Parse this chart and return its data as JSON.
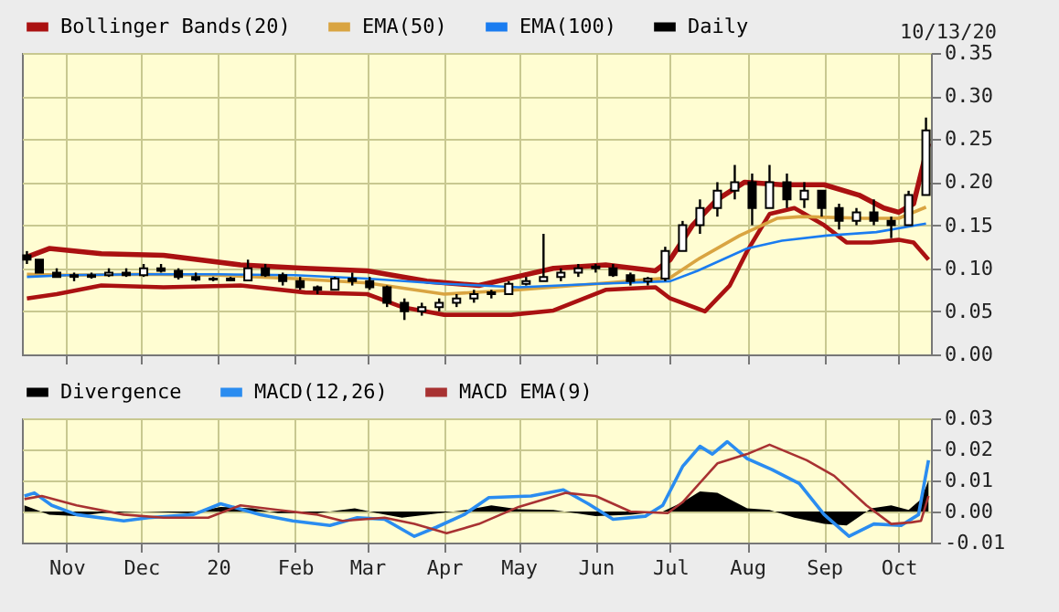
{
  "chart_data": [
    {
      "type": "candlestick",
      "legend": "top",
      "grid": true,
      "tick_labels": "y",
      "annotations": [
        "10/13/20"
      ],
      "xlim": [
        "2019-10-14",
        "2020-10-14"
      ],
      "xticks": [
        {
          "value": "2019-11-01",
          "label": null
        },
        {
          "value": "2019-12-01",
          "label": null
        },
        {
          "value": "2020-01-01",
          "label": null
        },
        {
          "value": "2020-02-01",
          "label": null
        },
        {
          "value": "2020-03-01",
          "label": null
        },
        {
          "value": "2020-04-01",
          "label": null
        },
        {
          "value": "2020-05-01",
          "label": null
        },
        {
          "value": "2020-06-01",
          "label": null
        },
        {
          "value": "2020-07-01",
          "label": null
        },
        {
          "value": "2020-08-01",
          "label": null
        },
        {
          "value": "2020-09-01",
          "label": null
        },
        {
          "value": "2020-10-01",
          "label": null
        }
      ],
      "ylim": [
        0,
        0.35
      ],
      "yticks": [
        {
          "value": 0,
          "label": "0.00"
        },
        0.05,
        {
          "value": 0.1,
          "label": "0.10"
        },
        0.15,
        {
          "value": 0.2,
          "label": "0.20"
        },
        0.25,
        {
          "value": 0.3,
          "label": "0.30"
        },
        0.35
      ],
      "series": [
        {
          "name": "Bollinger Bands(20)",
          "type": "line",
          "color": "#aa1111",
          "x": [
            "2019-10-16",
            "2019-10-25",
            "2019-11-15",
            "2019-12-10",
            "2020-01-10",
            "2020-02-05",
            "2020-03-01",
            "2020-03-25",
            "2020-04-15",
            "2020-04-30",
            "2020-05-15",
            "2020-06-05",
            "2020-06-25",
            "2020-07-01",
            "2020-07-10",
            "2020-07-20",
            "2020-07-31",
            "2020-08-15",
            "2020-09-01",
            "2020-09-15",
            "2020-09-25",
            "2020-10-01",
            "2020-10-07",
            "2020-10-13"
          ],
          "values": [
            0.113,
            0.123,
            0.117,
            0.115,
            0.104,
            0.1,
            0.097,
            0.085,
            0.08,
            0.09,
            0.1,
            0.104,
            0.097,
            0.11,
            0.15,
            0.18,
            0.2,
            0.197,
            0.197,
            0.185,
            0.17,
            0.165,
            0.175,
            0.245
          ]
        },
        {
          "type": "line",
          "color": "#aa1111",
          "x": [
            "2019-10-16",
            "2019-10-28",
            "2019-11-15",
            "2019-12-10",
            "2020-01-10",
            "2020-02-05",
            "2020-03-01",
            "2020-03-15",
            "2020-04-01",
            "2020-04-28",
            "2020-05-15",
            "2020-06-05",
            "2020-06-25",
            "2020-07-01",
            "2020-07-15",
            "2020-07-25",
            "2020-08-01",
            "2020-08-10",
            "2020-08-20",
            "2020-09-01",
            "2020-09-10",
            "2020-09-20",
            "2020-10-01",
            "2020-10-07",
            "2020-10-13"
          ],
          "values": [
            0.065,
            0.07,
            0.08,
            0.078,
            0.08,
            0.072,
            0.07,
            0.055,
            0.046,
            0.046,
            0.051,
            0.075,
            0.078,
            0.065,
            0.05,
            0.08,
            0.12,
            0.163,
            0.17,
            0.15,
            0.13,
            0.13,
            0.133,
            0.13,
            0.11
          ]
        },
        {
          "name": "EMA(50)",
          "type": "line",
          "color": "#d9a441",
          "x": [
            "2019-10-16",
            "2019-11-01",
            "2019-12-01",
            "2020-01-01",
            "2020-02-01",
            "2020-03-01",
            "2020-04-01",
            "2020-05-01",
            "2020-06-01",
            "2020-07-01",
            "2020-07-12",
            "2020-07-29",
            "2020-08-13",
            "2020-08-23",
            "2020-09-17",
            "2020-10-01",
            "2020-10-12"
          ],
          "values": [
            0.093,
            0.092,
            0.093,
            0.092,
            0.088,
            0.083,
            0.07,
            0.075,
            0.082,
            0.089,
            0.11,
            0.138,
            0.158,
            0.16,
            0.158,
            0.158,
            0.171
          ]
        },
        {
          "name": "EMA(100)",
          "type": "line",
          "color": "#1a7cf0",
          "x": [
            "2019-10-16",
            "2019-11-01",
            "2019-12-01",
            "2020-01-01",
            "2020-02-01",
            "2020-03-01",
            "2020-04-01",
            "2020-05-01",
            "2020-06-01",
            "2020-07-01",
            "2020-07-12",
            "2020-08-01",
            "2020-08-15",
            "2020-09-02",
            "2020-09-22",
            "2020-10-12"
          ],
          "values": [
            0.09,
            0.092,
            0.093,
            0.093,
            0.092,
            0.088,
            0.082,
            0.078,
            0.082,
            0.085,
            0.097,
            0.123,
            0.132,
            0.138,
            0.142,
            0.152
          ]
        },
        {
          "name": "Daily",
          "color": "#000000",
          "x": [
            "2019-10-16",
            "2019-10-21",
            "2019-10-28",
            "2019-11-04",
            "2019-11-11",
            "2019-11-18",
            "2019-11-25",
            "2019-12-02",
            "2019-12-09",
            "2019-12-16",
            "2019-12-23",
            "2019-12-30",
            "2020-01-06",
            "2020-01-13",
            "2020-01-20",
            "2020-01-27",
            "2020-02-03",
            "2020-02-10",
            "2020-02-17",
            "2020-02-24",
            "2020-03-02",
            "2020-03-09",
            "2020-03-16",
            "2020-03-23",
            "2020-03-30",
            "2020-04-06",
            "2020-04-13",
            "2020-04-20",
            "2020-04-27",
            "2020-05-04",
            "2020-05-11",
            "2020-05-18",
            "2020-05-25",
            "2020-06-01",
            "2020-06-08",
            "2020-06-15",
            "2020-06-22",
            "2020-06-29",
            "2020-07-06",
            "2020-07-13",
            "2020-07-20",
            "2020-07-27",
            "2020-08-03",
            "2020-08-10",
            "2020-08-17",
            "2020-08-24",
            "2020-08-31",
            "2020-09-07",
            "2020-09-14",
            "2020-09-21",
            "2020-09-28",
            "2020-10-05",
            "2020-10-12"
          ],
          "ohlc": [
            [
              0.115,
              0.12,
              0.105,
              0.11
            ],
            [
              0.11,
              0.11,
              0.095,
              0.095
            ],
            [
              0.095,
              0.1,
              0.09,
              0.09
            ],
            [
              0.09,
              0.095,
              0.085,
              0.092
            ],
            [
              0.09,
              0.095,
              0.088,
              0.092
            ],
            [
              0.092,
              0.1,
              0.09,
              0.095
            ],
            [
              0.095,
              0.1,
              0.09,
              0.092
            ],
            [
              0.092,
              0.105,
              0.09,
              0.1
            ],
            [
              0.1,
              0.105,
              0.095,
              0.097
            ],
            [
              0.097,
              0.1,
              0.087,
              0.09
            ],
            [
              0.09,
              0.095,
              0.085,
              0.087
            ],
            [
              0.087,
              0.09,
              0.085,
              0.088
            ],
            [
              0.088,
              0.09,
              0.085,
              0.086
            ],
            [
              0.086,
              0.11,
              0.085,
              0.1
            ],
            [
              0.1,
              0.105,
              0.09,
              0.092
            ],
            [
              0.092,
              0.095,
              0.08,
              0.085
            ],
            [
              0.085,
              0.09,
              0.075,
              0.078
            ],
            [
              0.078,
              0.08,
              0.07,
              0.075
            ],
            [
              0.075,
              0.09,
              0.075,
              0.088
            ],
            [
              0.088,
              0.095,
              0.08,
              0.085
            ],
            [
              0.085,
              0.09,
              0.075,
              0.078
            ],
            [
              0.078,
              0.08,
              0.055,
              0.06
            ],
            [
              0.06,
              0.065,
              0.04,
              0.05
            ],
            [
              0.05,
              0.06,
              0.045,
              0.055
            ],
            [
              0.055,
              0.065,
              0.05,
              0.06
            ],
            [
              0.06,
              0.07,
              0.055,
              0.065
            ],
            [
              0.065,
              0.075,
              0.06,
              0.07
            ],
            [
              0.07,
              0.075,
              0.065,
              0.072
            ],
            [
              0.07,
              0.085,
              0.07,
              0.082
            ],
            [
              0.082,
              0.09,
              0.08,
              0.085
            ],
            [
              0.085,
              0.14,
              0.085,
              0.09
            ],
            [
              0.09,
              0.1,
              0.085,
              0.095
            ],
            [
              0.095,
              0.105,
              0.09,
              0.1
            ],
            [
              0.1,
              0.105,
              0.095,
              0.102
            ],
            [
              0.1,
              0.105,
              0.09,
              0.092
            ],
            [
              0.092,
              0.095,
              0.08,
              0.085
            ],
            [
              0.085,
              0.09,
              0.08,
              0.088
            ],
            [
              0.088,
              0.125,
              0.085,
              0.12
            ],
            [
              0.12,
              0.155,
              0.12,
              0.15
            ],
            [
              0.15,
              0.18,
              0.14,
              0.17
            ],
            [
              0.17,
              0.2,
              0.16,
              0.19
            ],
            [
              0.19,
              0.22,
              0.18,
              0.2
            ],
            [
              0.2,
              0.21,
              0.15,
              0.17
            ],
            [
              0.17,
              0.22,
              0.17,
              0.2
            ],
            [
              0.2,
              0.21,
              0.17,
              0.18
            ],
            [
              0.18,
              0.2,
              0.17,
              0.19
            ],
            [
              0.19,
              0.19,
              0.16,
              0.17
            ],
            [
              0.17,
              0.175,
              0.145,
              0.155
            ],
            [
              0.155,
              0.17,
              0.15,
              0.165
            ],
            [
              0.165,
              0.18,
              0.15,
              0.155
            ],
            [
              0.155,
              0.16,
              0.135,
              0.15
            ],
            [
              0.15,
              0.19,
              0.15,
              0.185
            ],
            [
              0.185,
              0.275,
              0.185,
              0.26
            ]
          ]
        }
      ]
    },
    {
      "type": "line",
      "legend": "top",
      "grid": true,
      "xlim": [
        "2019-10-14",
        "2020-10-14"
      ],
      "xticks": [
        {
          "value": "2019-11-01",
          "label": "Nov"
        },
        {
          "value": "2019-12-01",
          "label": "Dec"
        },
        {
          "value": "2020-01-01",
          "label": "20"
        },
        {
          "value": "2020-02-01",
          "label": "Feb"
        },
        {
          "value": "2020-03-01",
          "label": "Mar"
        },
        {
          "value": "2020-04-01",
          "label": "Apr"
        },
        {
          "value": "2020-05-01",
          "label": "May"
        },
        {
          "value": "2020-06-01",
          "label": "Jun"
        },
        {
          "value": "2020-07-01",
          "label": "Jul"
        },
        {
          "value": "2020-08-01",
          "label": "Aug"
        },
        {
          "value": "2020-09-01",
          "label": "Sep"
        },
        {
          "value": "2020-10-01",
          "label": "Oct"
        }
      ],
      "ylim": [
        -0.01,
        0.03
      ],
      "yticks": [
        {
          "value": -0.01,
          "label": "-0.01"
        },
        {
          "value": 0,
          "label": "0.00"
        },
        0.01,
        0.02,
        0.03
      ],
      "series": [
        {
          "name": "Divergence",
          "type": "area",
          "color": "#000000",
          "x": [
            "2019-10-15",
            "2019-10-25",
            "2019-11-05",
            "2019-11-15",
            "2019-12-01",
            "2019-12-20",
            "2020-01-02",
            "2020-01-15",
            "2020-01-25",
            "2020-02-10",
            "2020-02-25",
            "2020-03-05",
            "2020-03-15",
            "2020-03-25",
            "2020-04-10",
            "2020-04-20",
            "2020-05-01",
            "2020-05-15",
            "2020-06-01",
            "2020-06-15",
            "2020-06-28",
            "2020-07-06",
            "2020-07-13",
            "2020-07-20",
            "2020-08-01",
            "2020-08-10",
            "2020-08-20",
            "2020-09-01",
            "2020-09-10",
            "2020-09-20",
            "2020-09-28",
            "2020-10-05",
            "2020-10-10",
            "2020-10-13"
          ],
          "values": [
            0.002,
            -0.001,
            -0.0015,
            -0.0005,
            0,
            -0.0005,
            0.0015,
            0.001,
            -0.0005,
            -0.0005,
            0.001,
            -0.0005,
            -0.002,
            -0.001,
            0.0005,
            0.002,
            0.0007,
            0.0005,
            -0.0015,
            -0.001,
            0,
            0.003,
            0.0065,
            0.006,
            0.001,
            0.0005,
            -0.002,
            -0.004,
            -0.0045,
            0.001,
            0.002,
            0.0005,
            0.004,
            0.01
          ]
        },
        {
          "name": "MACD(12,26)",
          "color": "#2a8cf0",
          "x": [
            "2019-10-15",
            "2019-10-19",
            "2019-10-26",
            "2019-11-05",
            "2019-11-24",
            "2019-12-04",
            "2019-12-22",
            "2020-01-02",
            "2020-01-18",
            "2020-01-31",
            "2020-02-15",
            "2020-02-26",
            "2020-03-08",
            "2020-03-20",
            "2020-03-29",
            "2020-04-09",
            "2020-04-19",
            "2020-05-06",
            "2020-05-19",
            "2020-05-29",
            "2020-06-08",
            "2020-06-21",
            "2020-06-28",
            "2020-07-06",
            "2020-07-13",
            "2020-07-18",
            "2020-07-24",
            "2020-08-01",
            "2020-08-11",
            "2020-08-22",
            "2020-09-01",
            "2020-09-11",
            "2020-09-21",
            "2020-10-02",
            "2020-10-09",
            "2020-10-13"
          ],
          "values": [
            0.005,
            0.006,
            0.002,
            -0.001,
            -0.003,
            -0.002,
            -0.001,
            0.0025,
            -0.001,
            -0.003,
            -0.0045,
            -0.002,
            -0.0025,
            -0.008,
            -0.005,
            -0.001,
            0.0045,
            0.005,
            0.007,
            0.0025,
            -0.0025,
            -0.0015,
            0.002,
            0.0145,
            0.021,
            0.0185,
            0.0225,
            0.017,
            0.0135,
            0.009,
            -0.001,
            -0.008,
            -0.004,
            -0.0045,
            -0.001,
            0.0165
          ]
        },
        {
          "name": "MACD EMA(9)",
          "color": "#a83232",
          "x": [
            "2019-10-15",
            "2019-10-22",
            "2019-11-05",
            "2019-11-24",
            "2019-12-10",
            "2019-12-28",
            "2020-01-10",
            "2020-01-25",
            "2020-02-10",
            "2020-02-20",
            "2020-03-08",
            "2020-03-20",
            "2020-04-02",
            "2020-04-15",
            "2020-05-01",
            "2020-05-20",
            "2020-06-01",
            "2020-06-15",
            "2020-06-30",
            "2020-07-06",
            "2020-07-20",
            "2020-08-01",
            "2020-08-10",
            "2020-08-25",
            "2020-09-05",
            "2020-09-18",
            "2020-09-28",
            "2020-10-06",
            "2020-10-10",
            "2020-10-13"
          ],
          "values": [
            0.004,
            0.005,
            0.002,
            -0.001,
            -0.002,
            -0.002,
            0.002,
            0.0005,
            -0.001,
            -0.003,
            -0.002,
            -0.004,
            -0.007,
            -0.004,
            0.0015,
            0.006,
            0.005,
            0,
            -0.0005,
            0.003,
            0.0155,
            0.0185,
            0.0215,
            0.0165,
            0.0115,
            0.002,
            -0.004,
            -0.0035,
            -0.003,
            0.005
          ]
        }
      ]
    }
  ]
}
